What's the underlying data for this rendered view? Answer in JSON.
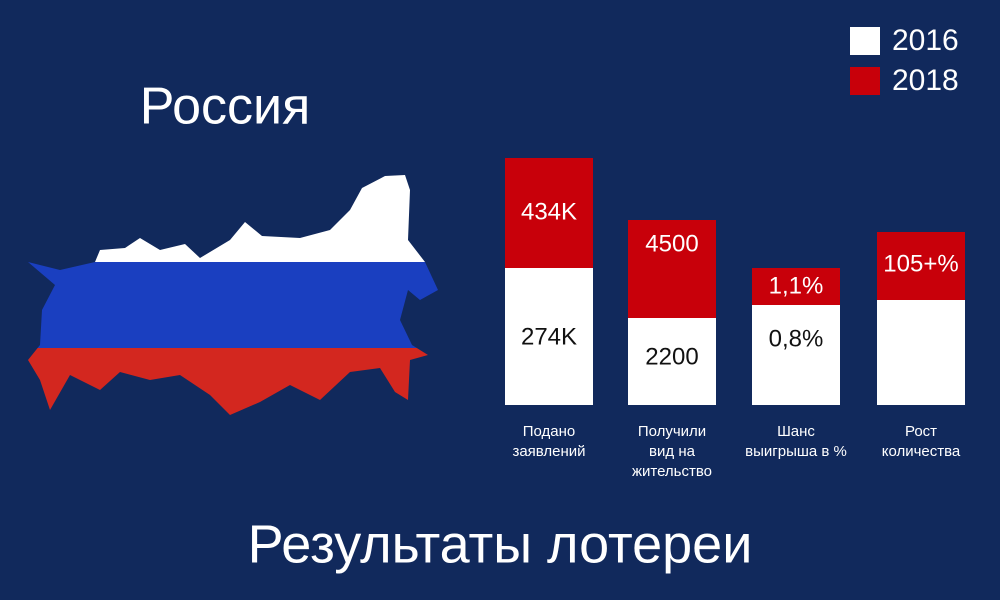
{
  "title": "Россия",
  "footer": "Результаты лотереи",
  "legend": [
    {
      "label": "2016",
      "color": "#ffffff"
    },
    {
      "label": "2018",
      "color": "#c8000a"
    }
  ],
  "groups": [
    {
      "label_lines": [
        "Подано",
        "заявлений"
      ],
      "top": "434K",
      "bottom": "274K"
    },
    {
      "label_lines": [
        "Получили",
        "вид на",
        "жительство"
      ],
      "top": "4500",
      "bottom": "2200"
    },
    {
      "label_lines": [
        "Шанс",
        "выигрыша в %"
      ],
      "top": "1,1%",
      "bottom": "0,8%"
    },
    {
      "label_lines": [
        "Рост",
        "количества"
      ],
      "top": "105+%"
    }
  ]
}
